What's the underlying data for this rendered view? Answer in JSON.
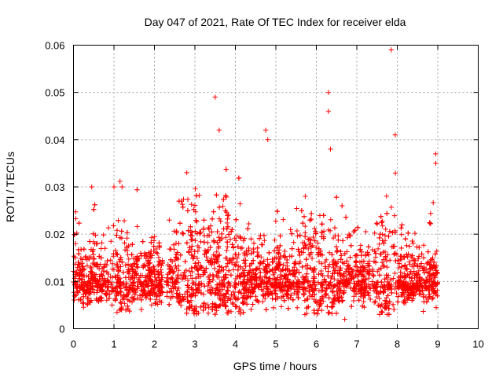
{
  "chart_data": {
    "type": "scatter",
    "title": "Day 047 of 2021, Rate Of TEC Index for receiver elda",
    "xlabel": "GPS time / hours",
    "ylabel": "ROTI / TECUs",
    "xlim": [
      0,
      10
    ],
    "ylim": [
      0,
      0.06
    ],
    "xticks": [
      "0",
      "1",
      "2",
      "3",
      "4",
      "5",
      "6",
      "7",
      "8",
      "9",
      "10"
    ],
    "yticks": [
      "0",
      "0.01",
      "0.02",
      "0.03",
      "0.04",
      "0.05",
      "0.06"
    ],
    "grid": true,
    "marker": "+",
    "color": "#ff0000",
    "series_summary": {
      "x_range_hours": [
        0,
        9.0
      ],
      "typical_baseline": 0.01,
      "gap_hours": [
        2.2,
        2.3
      ]
    },
    "notable_points": [
      {
        "x": 0.05,
        "y": 0.018
      },
      {
        "x": 0.45,
        "y": 0.03
      },
      {
        "x": 1.0,
        "y": 0.03
      },
      {
        "x": 1.2,
        "y": 0.03
      },
      {
        "x": 2.8,
        "y": 0.033
      },
      {
        "x": 3.5,
        "y": 0.049
      },
      {
        "x": 3.6,
        "y": 0.042
      },
      {
        "x": 4.75,
        "y": 0.042
      },
      {
        "x": 4.8,
        "y": 0.04
      },
      {
        "x": 6.3,
        "y": 0.05
      },
      {
        "x": 6.3,
        "y": 0.046
      },
      {
        "x": 6.35,
        "y": 0.038
      },
      {
        "x": 7.85,
        "y": 0.059
      },
      {
        "x": 7.95,
        "y": 0.041
      },
      {
        "x": 8.95,
        "y": 0.037
      },
      {
        "x": 8.95,
        "y": 0.035
      },
      {
        "x": 7.75,
        "y": 0.003
      },
      {
        "x": 6.7,
        "y": 0.002
      }
    ]
  }
}
